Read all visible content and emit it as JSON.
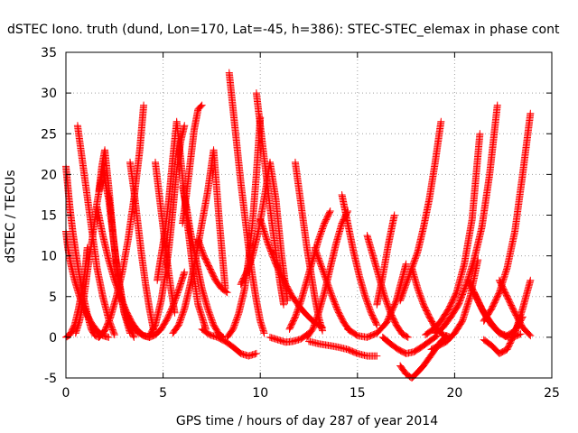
{
  "chart_data": {
    "type": "scatter",
    "title": "dSTEC Iono. truth (dund, Lon=170, Lat=-45, h=386): STEC-STEC_elemax in phase cont",
    "xlabel": "GPS time / hours of day 287 of year 2014",
    "ylabel": "dSTEC  / TECUs",
    "xlim": [
      0,
      25
    ],
    "ylim": [
      -5,
      35
    ],
    "xticks": [
      0,
      5,
      10,
      15,
      20,
      25
    ],
    "yticks": [
      -5,
      0,
      5,
      10,
      15,
      20,
      25,
      30,
      35
    ],
    "grid": true,
    "marker": "+",
    "color": "#ff0000",
    "series": [
      {
        "x": [
          0.0,
          0.1,
          0.2,
          0.35,
          0.5,
          0.7,
          0.9,
          1.1,
          1.3,
          1.5,
          1.7
        ],
        "y": [
          21.0,
          18.5,
          16.0,
          13.0,
          10.5,
          7.5,
          5.0,
          2.8,
          1.0,
          0.2,
          0.0
        ]
      },
      {
        "x": [
          0.0,
          0.1,
          0.25,
          0.45,
          0.7,
          1.0,
          1.3,
          1.6,
          1.9,
          2.2
        ],
        "y": [
          13.0,
          11.0,
          9.0,
          7.0,
          5.0,
          3.2,
          1.8,
          0.8,
          0.2,
          0.0
        ]
      },
      {
        "x": [
          0.0,
          0.2,
          0.45,
          0.65,
          0.85,
          1.0,
          1.1
        ],
        "y": [
          0.0,
          0.3,
          1.5,
          3.5,
          6.0,
          8.5,
          11.0
        ]
      },
      {
        "x": [
          0.5,
          0.7,
          0.9,
          1.1,
          1.35,
          1.6,
          1.9,
          2.2,
          2.6,
          3.0,
          3.5
        ],
        "y": [
          0.5,
          2.0,
          4.5,
          8.0,
          12.0,
          16.5,
          20.5,
          17.0,
          9.0,
          3.0,
          0.0
        ]
      },
      {
        "x": [
          0.6,
          0.8,
          1.0,
          1.2,
          1.4,
          1.6,
          1.9,
          2.2,
          2.5
        ],
        "y": [
          26.0,
          22.5,
          19.0,
          15.5,
          12.0,
          8.5,
          5.0,
          2.2,
          0.3
        ]
      },
      {
        "x": [
          1.7,
          2.0,
          2.3,
          2.6,
          2.9,
          3.2,
          3.5,
          3.8,
          4.0
        ],
        "y": [
          0.0,
          0.8,
          2.5,
          5.0,
          8.0,
          12.0,
          17.0,
          23.0,
          28.5
        ]
      },
      {
        "x": [
          1.7,
          1.85,
          2.0,
          2.2,
          2.45,
          2.7,
          3.0,
          3.3
        ],
        "y": [
          18.0,
          21.0,
          23.0,
          18.5,
          12.0,
          7.0,
          3.0,
          0.5
        ]
      },
      {
        "x": [
          1.6,
          1.9,
          2.2,
          2.5,
          2.8,
          3.1,
          3.4,
          3.7,
          4.0,
          4.3
        ],
        "y": [
          16.0,
          12.5,
          9.5,
          7.0,
          5.0,
          3.2,
          1.8,
          0.8,
          0.2,
          0.0
        ]
      },
      {
        "x": [
          2.8,
          3.1,
          3.4,
          3.7,
          4.0,
          4.3,
          4.6,
          4.9,
          5.2,
          5.5,
          5.8,
          6.1
        ],
        "y": [
          5.0,
          3.0,
          1.5,
          0.6,
          0.2,
          0.0,
          0.3,
          1.0,
          2.2,
          3.8,
          5.8,
          8.0
        ]
      },
      {
        "x": [
          3.3,
          3.5,
          3.7,
          3.9,
          4.1,
          4.3,
          4.5
        ],
        "y": [
          21.5,
          18.0,
          14.0,
          10.0,
          6.5,
          3.5,
          1.0
        ]
      },
      {
        "x": [
          4.3,
          4.6,
          4.9,
          5.1,
          5.3,
          5.5,
          5.7,
          5.9,
          6.1
        ],
        "y": [
          0.2,
          1.5,
          4.5,
          7.5,
          11.0,
          15.5,
          20.5,
          24.0,
          26.0
        ]
      },
      {
        "x": [
          4.6,
          4.8,
          5.0,
          5.2,
          5.4,
          5.6
        ],
        "y": [
          21.5,
          17.5,
          13.5,
          9.5,
          6.0,
          3.0
        ]
      },
      {
        "x": [
          4.7,
          4.9,
          5.1,
          5.3,
          5.5,
          5.7,
          5.9,
          6.2,
          6.5,
          6.8,
          7.2
        ],
        "y": [
          7.0,
          10.0,
          13.0,
          17.0,
          22.0,
          26.5,
          22.0,
          15.0,
          9.0,
          4.0,
          1.0
        ]
      },
      {
        "x": [
          5.5,
          5.8,
          6.1,
          6.4,
          6.7,
          7.0,
          7.3,
          7.6,
          7.9,
          8.2
        ],
        "y": [
          0.5,
          1.5,
          3.5,
          6.5,
          10.0,
          14.0,
          18.0,
          23.0,
          14.0,
          6.0
        ]
      },
      {
        "x": [
          6.0,
          6.2,
          6.4,
          6.7,
          7.0,
          7.3,
          7.6,
          7.9,
          8.1
        ],
        "y": [
          18.5,
          16.0,
          13.0,
          9.5,
          6.0,
          3.5,
          1.5,
          0.3,
          0.0
        ]
      },
      {
        "x": [
          6.0,
          6.2,
          6.4,
          6.6,
          6.8,
          7.0
        ],
        "y": [
          14.0,
          17.5,
          21.5,
          25.5,
          28.0,
          28.5
        ]
      },
      {
        "x": [
          6.8,
          7.1,
          7.4,
          7.7,
          8.0,
          8.3
        ],
        "y": [
          12.0,
          10.0,
          8.5,
          7.0,
          6.0,
          5.5
        ]
      },
      {
        "x": [
          7.0,
          7.4,
          7.8,
          8.2,
          8.6,
          9.0,
          9.4,
          9.8
        ],
        "y": [
          1.0,
          0.3,
          0.0,
          -0.5,
          -1.2,
          -2.0,
          -2.3,
          -2.0
        ]
      },
      {
        "x": [
          8.4,
          8.6,
          8.8,
          9.0,
          9.2,
          9.4,
          9.6,
          9.8,
          10.0,
          10.2
        ],
        "y": [
          32.5,
          28.0,
          23.5,
          19.0,
          15.0,
          11.0,
          7.5,
          4.5,
          2.0,
          0.5
        ]
      },
      {
        "x": [
          8.3,
          8.6,
          8.9,
          9.2,
          9.4,
          9.6,
          9.8,
          10.0
        ],
        "y": [
          0.0,
          1.0,
          3.0,
          6.0,
          9.5,
          14.0,
          20.0,
          27.0
        ]
      },
      {
        "x": [
          9.0,
          9.3,
          9.6,
          9.9,
          10.2,
          10.5,
          10.8,
          11.1,
          11.4
        ],
        "y": [
          6.5,
          8.0,
          10.0,
          13.0,
          17.0,
          21.5,
          17.0,
          10.0,
          4.5
        ]
      },
      {
        "x": [
          9.8,
          10.0,
          10.2,
          10.4,
          10.6,
          10.8,
          11.0,
          11.2
        ],
        "y": [
          30.0,
          26.0,
          22.0,
          18.0,
          14.0,
          10.5,
          7.0,
          4.0
        ]
      },
      {
        "x": [
          10.0,
          10.4,
          10.8,
          11.2,
          11.6,
          12.0,
          12.4,
          12.8,
          13.2
        ],
        "y": [
          14.5,
          11.5,
          9.0,
          7.0,
          5.2,
          3.8,
          2.7,
          1.8,
          1.2
        ]
      },
      {
        "x": [
          10.5,
          10.9,
          11.3,
          11.7,
          12.1,
          12.5
        ],
        "y": [
          0.0,
          -0.3,
          -0.6,
          -0.5,
          -0.2,
          0.5
        ]
      },
      {
        "x": [
          11.8,
          12.0,
          12.2,
          12.4,
          12.6,
          12.8,
          13.0,
          13.2
        ],
        "y": [
          21.5,
          18.0,
          14.5,
          11.0,
          8.0,
          5.0,
          2.5,
          0.8
        ]
      },
      {
        "x": [
          11.5,
          11.8,
          12.1,
          12.4,
          12.7,
          13.0,
          13.3,
          13.6
        ],
        "y": [
          1.0,
          2.5,
          4.5,
          7.0,
          9.5,
          12.0,
          14.0,
          15.5
        ]
      },
      {
        "x": [
          12.4,
          12.7,
          13.0,
          13.3,
          13.6,
          13.9,
          14.2,
          14.5
        ],
        "y": [
          0.0,
          1.0,
          3.0,
          5.5,
          8.5,
          11.5,
          14.0,
          15.5
        ]
      },
      {
        "x": [
          12.8,
          13.1,
          13.4,
          13.7,
          14.0,
          14.3,
          14.6
        ],
        "y": [
          11.0,
          9.0,
          7.0,
          5.0,
          3.2,
          1.8,
          0.8
        ]
      },
      {
        "x": [
          12.5,
          13.0,
          13.5,
          14.0,
          14.5,
          15.0,
          15.5,
          16.0
        ],
        "y": [
          -0.5,
          -0.8,
          -1.0,
          -1.2,
          -1.5,
          -2.0,
          -2.3,
          -2.3
        ]
      },
      {
        "x": [
          14.2,
          14.5,
          14.8,
          15.1,
          15.4,
          15.7,
          16.0
        ],
        "y": [
          17.5,
          14.0,
          10.5,
          7.5,
          5.0,
          3.0,
          1.5
        ]
      },
      {
        "x": [
          15.5,
          15.8,
          16.1,
          16.4,
          16.7,
          17.0,
          17.3,
          17.6
        ],
        "y": [
          12.5,
          10.0,
          7.5,
          5.0,
          3.0,
          1.5,
          0.4,
          0.0
        ]
      },
      {
        "x": [
          14.5,
          15.0,
          15.5,
          16.0,
          16.5,
          17.0,
          17.5
        ],
        "y": [
          1.0,
          0.2,
          0.0,
          0.5,
          1.8,
          4.5,
          9.0
        ]
      },
      {
        "x": [
          16.0,
          16.3,
          16.6,
          16.9
        ],
        "y": [
          4.0,
          7.5,
          11.5,
          15.0
        ]
      },
      {
        "x": [
          16.3,
          16.7,
          17.1,
          17.5,
          17.9,
          18.3,
          18.7,
          19.1
        ],
        "y": [
          0.0,
          -0.8,
          -1.5,
          -2.0,
          -1.8,
          -1.2,
          -0.5,
          0.2
        ]
      },
      {
        "x": [
          17.2,
          17.5,
          17.8,
          18.1,
          18.4,
          18.7,
          19.0,
          19.3,
          19.6
        ],
        "y": [
          -3.5,
          -4.5,
          -5.0,
          -4.3,
          -3.5,
          -2.5,
          -1.5,
          -0.5,
          0.2
        ]
      },
      {
        "x": [
          17.2,
          17.5,
          17.8,
          18.1,
          18.4,
          18.7,
          19.0,
          19.3
        ],
        "y": [
          4.5,
          6.5,
          8.5,
          10.5,
          13.5,
          17.0,
          21.5,
          26.5
        ]
      },
      {
        "x": [
          17.8,
          18.1,
          18.4,
          18.7,
          19.0,
          19.4,
          19.8
        ],
        "y": [
          8.5,
          6.0,
          4.0,
          2.5,
          1.2,
          0.3,
          0.0
        ]
      },
      {
        "x": [
          18.5,
          18.9,
          19.3,
          19.7,
          20.1,
          20.5,
          20.9,
          21.3
        ],
        "y": [
          0.3,
          1.0,
          2.0,
          3.5,
          5.5,
          9.0,
          14.5,
          25.0
        ]
      },
      {
        "x": [
          18.8,
          19.2,
          19.6,
          20.0,
          20.4,
          20.8,
          21.2
        ],
        "y": [
          -1.5,
          -1.0,
          -0.5,
          0.5,
          2.0,
          5.0,
          9.5
        ]
      },
      {
        "x": [
          19.0,
          19.4,
          19.8,
          20.2,
          20.6,
          21.0,
          21.4,
          21.8,
          22.2
        ],
        "y": [
          0.5,
          1.2,
          2.5,
          4.0,
          6.5,
          9.5,
          13.5,
          20.0,
          28.5
        ]
      },
      {
        "x": [
          20.7,
          21.1,
          21.5,
          21.9,
          22.3,
          22.7,
          23.1,
          23.5
        ],
        "y": [
          7.0,
          5.0,
          3.0,
          1.5,
          0.5,
          0.2,
          0.8,
          2.5
        ]
      },
      {
        "x": [
          21.5,
          21.9,
          22.3,
          22.7,
          23.1,
          23.5,
          23.9
        ],
        "y": [
          -0.3,
          -1.0,
          -2.0,
          -1.5,
          0.5,
          3.5,
          7.0
        ]
      },
      {
        "x": [
          21.0,
          21.4,
          21.8,
          22.2,
          22.6,
          23.0,
          23.4
        ],
        "y": [
          5.5,
          3.5,
          2.0,
          0.8,
          0.1,
          0.0,
          0.4
        ]
      },
      {
        "x": [
          21.5,
          21.9,
          22.3,
          22.7,
          23.1,
          23.5,
          23.9
        ],
        "y": [
          2.0,
          3.5,
          5.5,
          8.5,
          13.0,
          20.0,
          27.5
        ]
      },
      {
        "x": [
          22.3,
          22.7,
          23.1,
          23.5,
          23.9
        ],
        "y": [
          7.0,
          5.0,
          3.0,
          1.2,
          0.2
        ]
      }
    ]
  }
}
